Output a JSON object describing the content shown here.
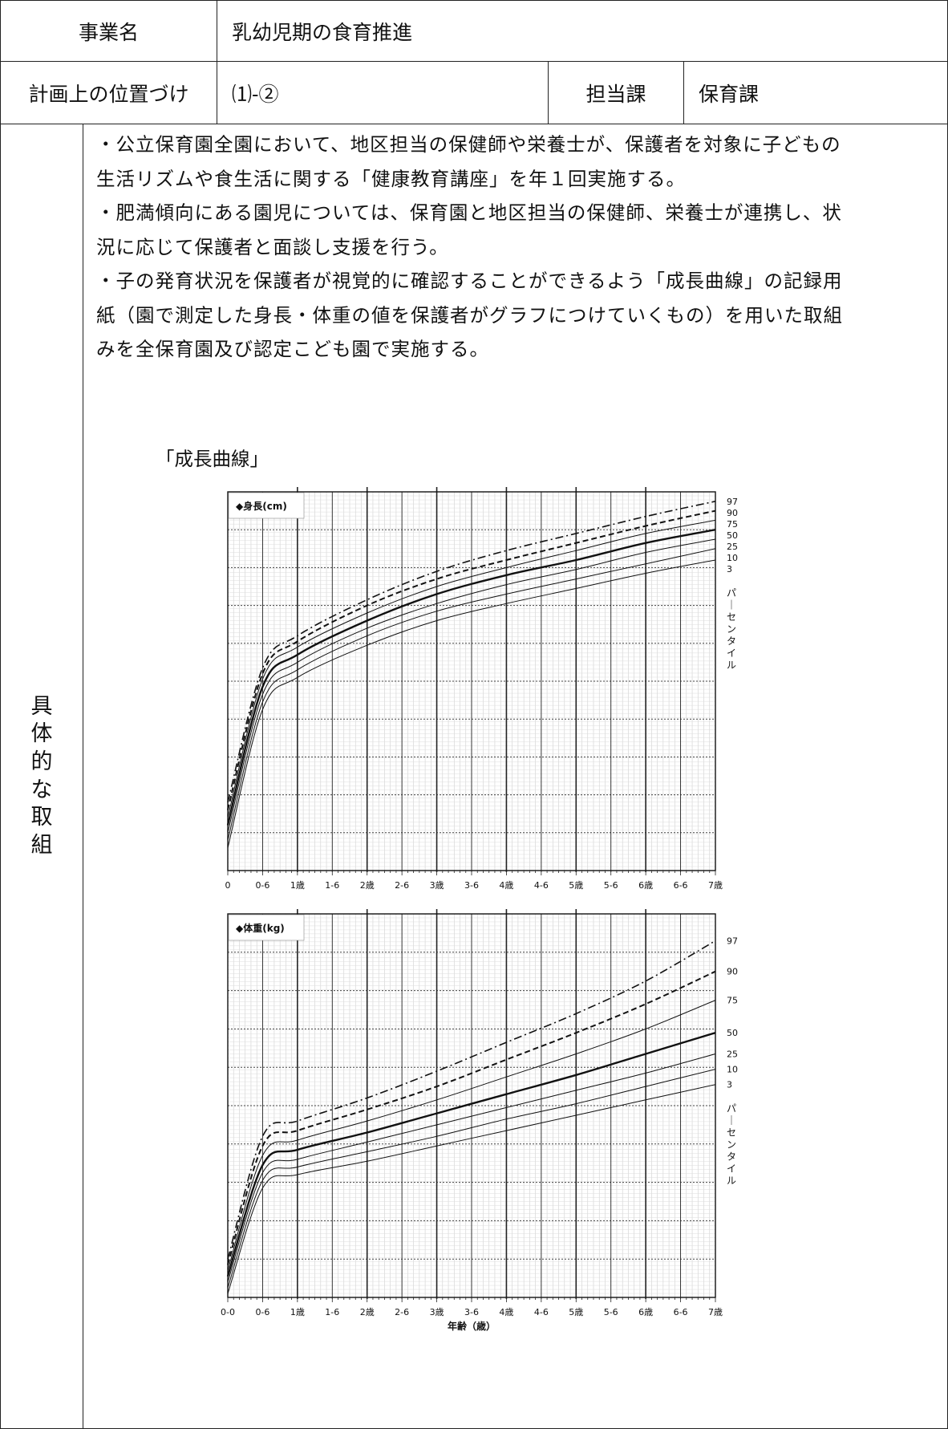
{
  "header": {
    "project_label": "事業名",
    "project_value": "乳幼児期の食育推進",
    "position_label": "計画上の位置づけ",
    "position_value": "⑴-②",
    "dept_label": "担当課",
    "dept_value": "保育課"
  },
  "section_label": "具体的な取組",
  "paragraphs": [
    [
      "・公立保育園全園において、地区担当の保健師や栄養士が、保護者を対象に子どもの",
      "生活リズムや食生活に関する「健康教育講座」を年１回実施する。"
    ],
    [
      "・肥満傾向にある園児については、保育園と地区担当の保健師、栄養士が連携し、状",
      "況に応じて保護者と面談し支援を行う。"
    ],
    [
      "・子の発育状況を保護者が視覚的に確認することができるよう「成長曲線」の記録用",
      "紙（園で測定した身長・体重の値を保護者がグラフにつけていくもの）を用いた取組",
      "みを全保育園及び認定こども園で実施する。"
    ]
  ],
  "figure_caption": "「成長曲線」",
  "chart_data": [
    {
      "type": "line",
      "title": "◆身長(cm)",
      "x_tick_labels": [
        "0",
        "0-6",
        "1歳",
        "1-6",
        "2歳",
        "2-6",
        "3歳",
        "3-6",
        "4歳",
        "4-6",
        "5歳",
        "5-6",
        "6歳",
        "6-6",
        "7歳"
      ],
      "xlim": [
        0,
        7
      ],
      "xlabel": "",
      "side_label": "パーセンタイル",
      "grid": true,
      "series": [
        {
          "name": "97",
          "style": "dashdot",
          "values": [
            [
              0,
              0.18
            ],
            [
              0.5,
              0.535
            ],
            [
              1,
              0.62
            ],
            [
              2,
              0.715
            ],
            [
              3,
              0.79
            ],
            [
              4,
              0.845
            ],
            [
              5,
              0.89
            ],
            [
              6,
              0.935
            ],
            [
              7,
              0.975
            ]
          ]
        },
        {
          "name": "90",
          "style": "dashed",
          "values": [
            [
              0,
              0.16
            ],
            [
              0.5,
              0.52
            ],
            [
              1,
              0.605
            ],
            [
              2,
              0.7
            ],
            [
              3,
              0.77
            ],
            [
              4,
              0.82
            ],
            [
              5,
              0.865
            ],
            [
              6,
              0.91
            ],
            [
              7,
              0.95
            ]
          ]
        },
        {
          "name": "75",
          "style": "thin",
          "values": [
            [
              0,
              0.14
            ],
            [
              0.5,
              0.505
            ],
            [
              1,
              0.59
            ],
            [
              2,
              0.68
            ],
            [
              3,
              0.75
            ],
            [
              4,
              0.8
            ],
            [
              5,
              0.845
            ],
            [
              6,
              0.89
            ],
            [
              7,
              0.925
            ]
          ]
        },
        {
          "name": "50",
          "style": "bold",
          "values": [
            [
              0,
              0.12
            ],
            [
              0.5,
              0.485
            ],
            [
              1,
              0.57
            ],
            [
              2,
              0.66
            ],
            [
              3,
              0.73
            ],
            [
              4,
              0.78
            ],
            [
              5,
              0.82
            ],
            [
              6,
              0.865
            ],
            [
              7,
              0.9
            ]
          ]
        },
        {
          "name": "25",
          "style": "thin",
          "values": [
            [
              0,
              0.1
            ],
            [
              0.5,
              0.465
            ],
            [
              1,
              0.55
            ],
            [
              2,
              0.64
            ],
            [
              3,
              0.705
            ],
            [
              4,
              0.755
            ],
            [
              5,
              0.795
            ],
            [
              6,
              0.84
            ],
            [
              7,
              0.875
            ]
          ]
        },
        {
          "name": "10",
          "style": "thin",
          "values": [
            [
              0,
              0.08
            ],
            [
              0.5,
              0.445
            ],
            [
              1,
              0.53
            ],
            [
              2,
              0.62
            ],
            [
              3,
              0.685
            ],
            [
              4,
              0.73
            ],
            [
              5,
              0.77
            ],
            [
              6,
              0.81
            ],
            [
              7,
              0.85
            ]
          ]
        },
        {
          "name": "3",
          "style": "thin",
          "values": [
            [
              0,
              0.06
            ],
            [
              0.5,
              0.425
            ],
            [
              1,
              0.51
            ],
            [
              2,
              0.595
            ],
            [
              3,
              0.66
            ],
            [
              4,
              0.705
            ],
            [
              5,
              0.745
            ],
            [
              6,
              0.785
            ],
            [
              7,
              0.82
            ]
          ]
        }
      ]
    },
    {
      "type": "line",
      "title": "◆体重(kg)",
      "x_tick_labels": [
        "0-0",
        "0-6",
        "1歳",
        "1-6",
        "2歳",
        "2-6",
        "3歳",
        "3-6",
        "4歳",
        "4-6",
        "5歳",
        "5-6",
        "6歳",
        "6-6",
        "7歳"
      ],
      "xlim": [
        0,
        7
      ],
      "xlabel": "年齢（歳）",
      "side_label": "パーセンタイル",
      "grid": true,
      "series": [
        {
          "name": "97",
          "style": "dashdot",
          "values": [
            [
              0,
              0.1
            ],
            [
              0.5,
              0.42
            ],
            [
              1,
              0.46
            ],
            [
              2,
              0.52
            ],
            [
              3,
              0.59
            ],
            [
              4,
              0.665
            ],
            [
              5,
              0.74
            ],
            [
              6,
              0.825
            ],
            [
              7,
              0.93
            ]
          ]
        },
        {
          "name": "90",
          "style": "dashed",
          "values": [
            [
              0,
              0.085
            ],
            [
              0.5,
              0.395
            ],
            [
              1,
              0.435
            ],
            [
              2,
              0.49
            ],
            [
              3,
              0.55
            ],
            [
              4,
              0.62
            ],
            [
              5,
              0.69
            ],
            [
              6,
              0.765
            ],
            [
              7,
              0.85
            ]
          ]
        },
        {
          "name": "75",
          "style": "thin",
          "values": [
            [
              0,
              0.07
            ],
            [
              0.5,
              0.37
            ],
            [
              1,
              0.41
            ],
            [
              2,
              0.46
            ],
            [
              3,
              0.515
            ],
            [
              4,
              0.575
            ],
            [
              5,
              0.635
            ],
            [
              6,
              0.7
            ],
            [
              7,
              0.775
            ]
          ]
        },
        {
          "name": "50",
          "style": "bold",
          "values": [
            [
              0,
              0.055
            ],
            [
              0.5,
              0.345
            ],
            [
              1,
              0.385
            ],
            [
              2,
              0.43
            ],
            [
              3,
              0.48
            ],
            [
              4,
              0.53
            ],
            [
              5,
              0.58
            ],
            [
              6,
              0.635
            ],
            [
              7,
              0.69
            ]
          ]
        },
        {
          "name": "25",
          "style": "thin",
          "values": [
            [
              0,
              0.04
            ],
            [
              0.5,
              0.325
            ],
            [
              1,
              0.36
            ],
            [
              2,
              0.405
            ],
            [
              3,
              0.45
            ],
            [
              4,
              0.495
            ],
            [
              5,
              0.54
            ],
            [
              6,
              0.585
            ],
            [
              7,
              0.635
            ]
          ]
        },
        {
          "name": "10",
          "style": "thin",
          "values": [
            [
              0,
              0.025
            ],
            [
              0.5,
              0.305
            ],
            [
              1,
              0.34
            ],
            [
              2,
              0.38
            ],
            [
              3,
              0.42
            ],
            [
              4,
              0.465
            ],
            [
              5,
              0.505
            ],
            [
              6,
              0.55
            ],
            [
              7,
              0.595
            ]
          ]
        },
        {
          "name": "3",
          "style": "thin",
          "values": [
            [
              0,
              0.01
            ],
            [
              0.5,
              0.285
            ],
            [
              1,
              0.32
            ],
            [
              2,
              0.355
            ],
            [
              3,
              0.395
            ],
            [
              4,
              0.435
            ],
            [
              5,
              0.475
            ],
            [
              6,
              0.515
            ],
            [
              7,
              0.555
            ]
          ]
        }
      ]
    }
  ]
}
